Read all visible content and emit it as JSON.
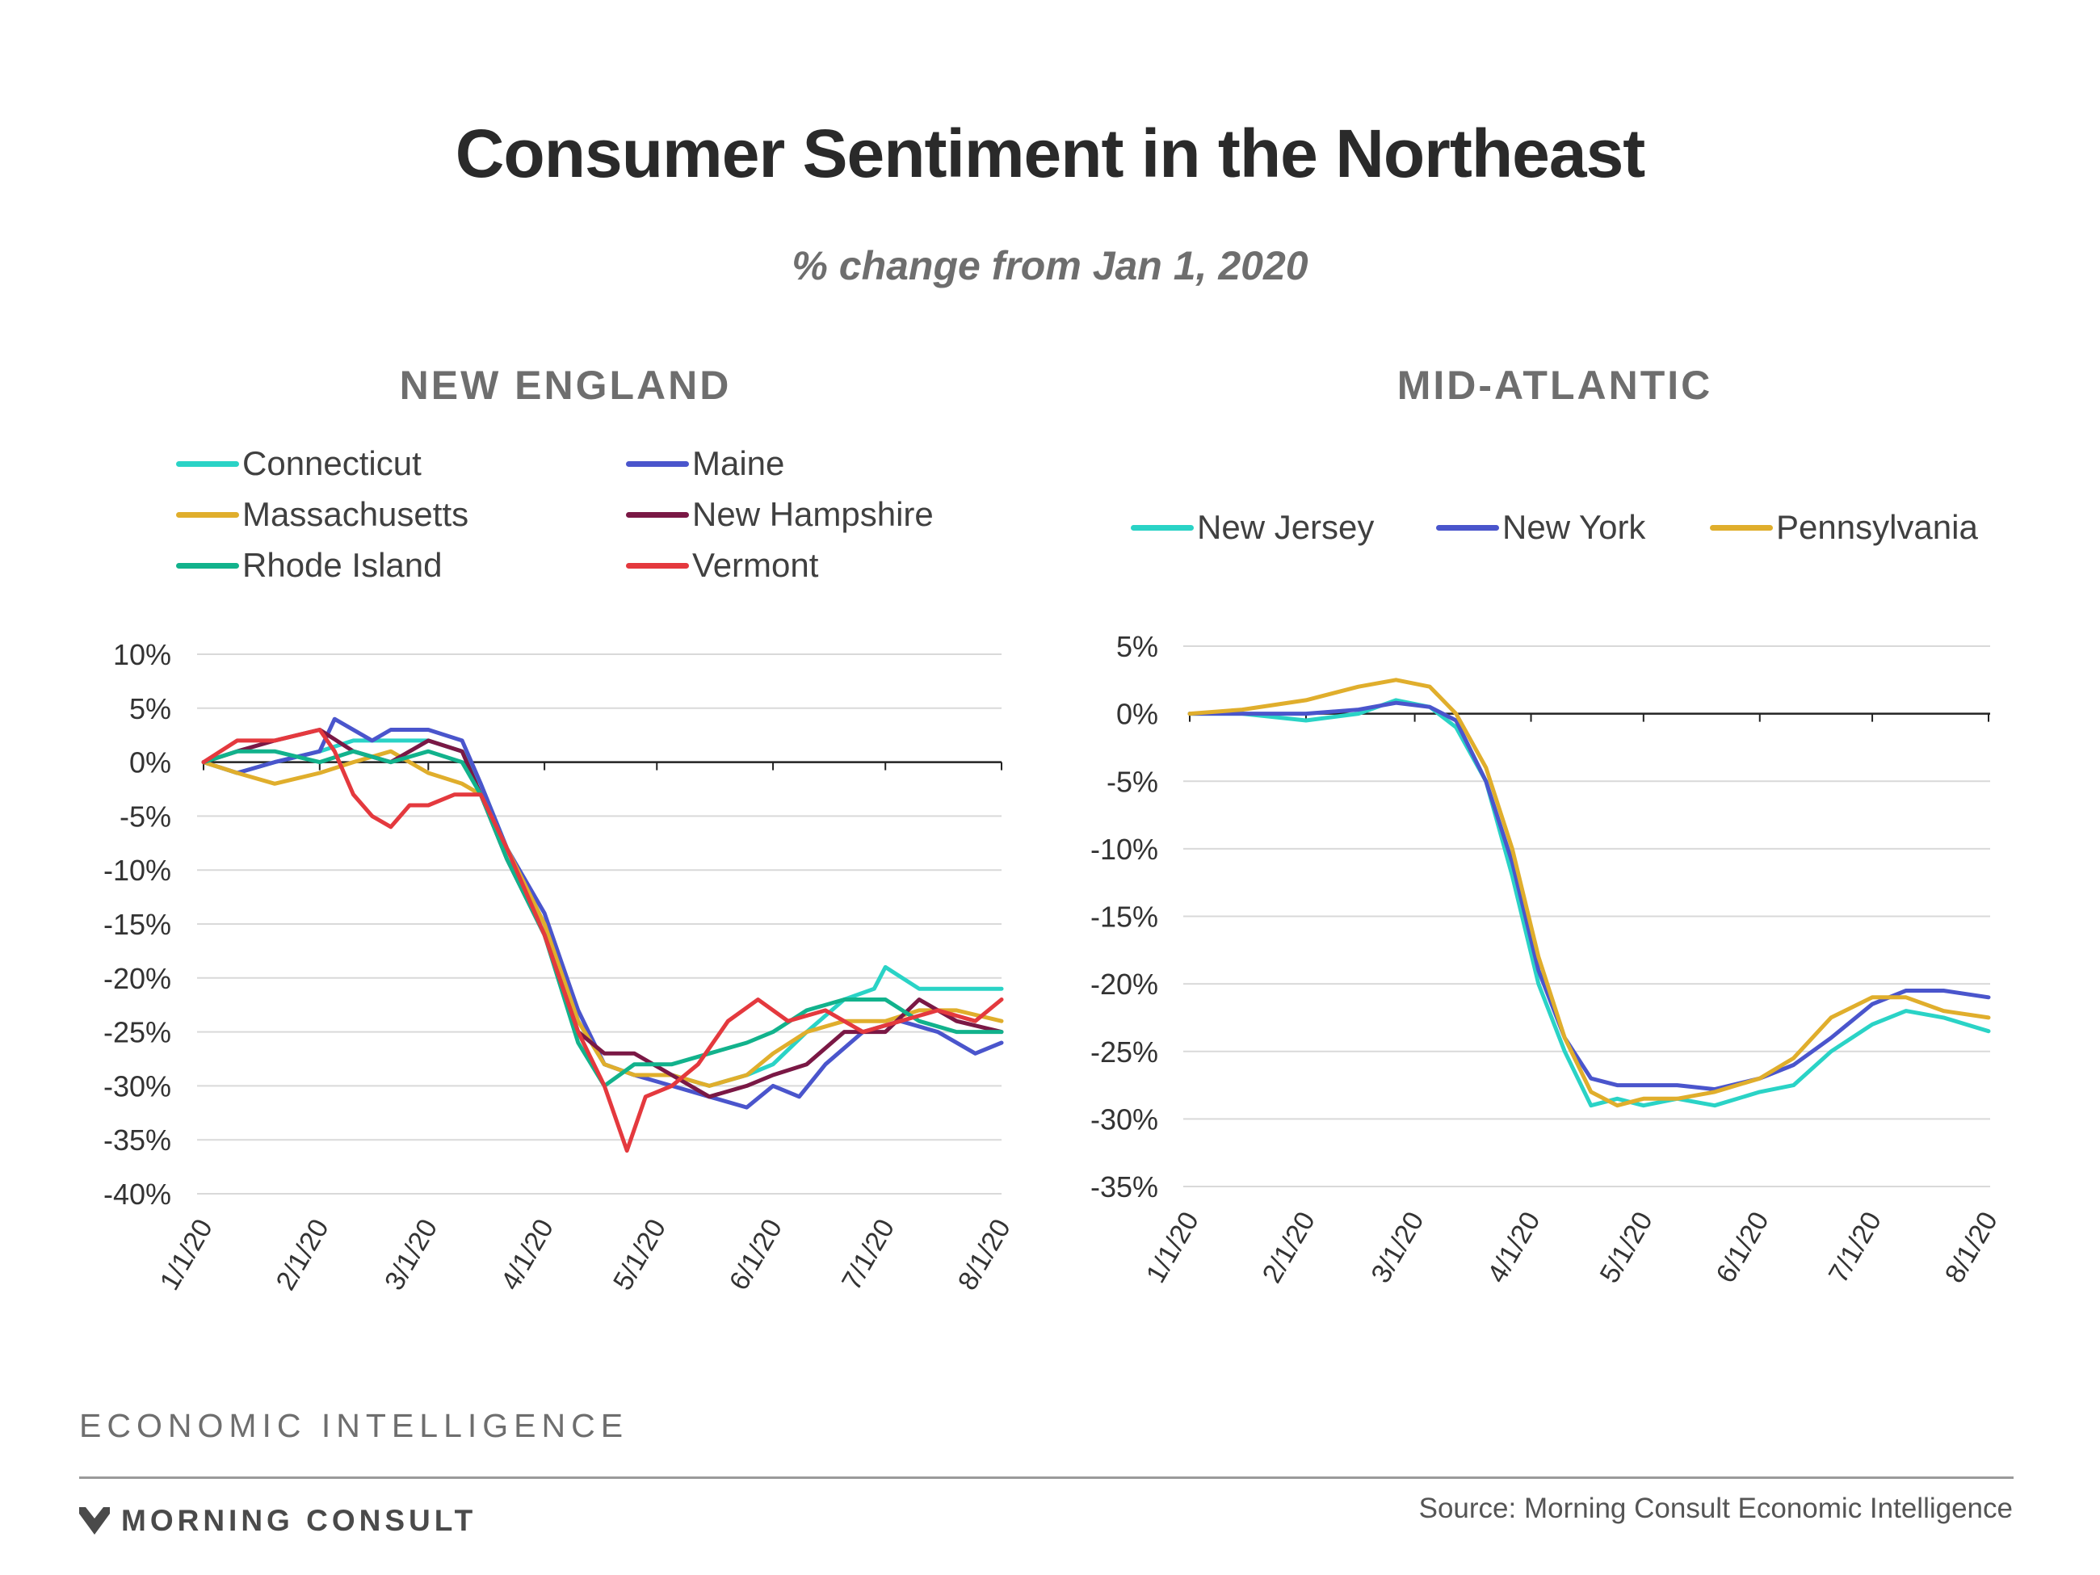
{
  "header": {
    "title": "Consumer Sentiment in the Northeast",
    "subtitle": "% change from Jan 1, 2020"
  },
  "chart_data": [
    {
      "type": "line",
      "title": "NEW ENGLAND",
      "xlabel": "",
      "ylabel": "",
      "x_ticks": [
        "1/1/20",
        "2/1/20",
        "3/1/20",
        "4/1/20",
        "5/1/20",
        "6/1/20",
        "7/1/20",
        "8/1/20"
      ],
      "xlim": [
        "2020-01-01",
        "2020-08-01"
      ],
      "y_ticks": [
        "10%",
        "5%",
        "0%",
        "-5%",
        "-10%",
        "-15%",
        "-20%",
        "-25%",
        "-30%",
        "-35%",
        "-40%"
      ],
      "ylim": [
        -40,
        10
      ],
      "grid": true,
      "legend": "top",
      "series": [
        {
          "name": "Connecticut",
          "color": "#2ad3c6",
          "points": [
            [
              "2020-01-01",
              0
            ],
            [
              "2020-01-10",
              -1
            ],
            [
              "2020-01-20",
              0
            ],
            [
              "2020-02-01",
              1
            ],
            [
              "2020-02-10",
              2
            ],
            [
              "2020-02-20",
              2
            ],
            [
              "2020-03-01",
              2
            ],
            [
              "2020-03-10",
              1
            ],
            [
              "2020-03-15",
              -2
            ],
            [
              "2020-03-22",
              -8
            ],
            [
              "2020-04-01",
              -15
            ],
            [
              "2020-04-10",
              -24
            ],
            [
              "2020-04-17",
              -28
            ],
            [
              "2020-04-25",
              -29
            ],
            [
              "2020-05-05",
              -29
            ],
            [
              "2020-05-15",
              -30
            ],
            [
              "2020-05-25",
              -29
            ],
            [
              "2020-06-01",
              -28
            ],
            [
              "2020-06-10",
              -25
            ],
            [
              "2020-06-20",
              -22
            ],
            [
              "2020-06-28",
              -21
            ],
            [
              "2020-07-01",
              -19
            ],
            [
              "2020-07-10",
              -21
            ],
            [
              "2020-07-20",
              -21
            ],
            [
              "2020-08-01",
              -21
            ]
          ]
        },
        {
          "name": "Maine",
          "color": "#4a55cc",
          "points": [
            [
              "2020-01-01",
              0
            ],
            [
              "2020-01-10",
              -1
            ],
            [
              "2020-01-20",
              0
            ],
            [
              "2020-02-01",
              1
            ],
            [
              "2020-02-05",
              4
            ],
            [
              "2020-02-15",
              2
            ],
            [
              "2020-02-20",
              3
            ],
            [
              "2020-03-01",
              3
            ],
            [
              "2020-03-10",
              2
            ],
            [
              "2020-03-15",
              -2
            ],
            [
              "2020-03-22",
              -8
            ],
            [
              "2020-04-01",
              -14
            ],
            [
              "2020-04-10",
              -23
            ],
            [
              "2020-04-17",
              -28
            ],
            [
              "2020-04-25",
              -29
            ],
            [
              "2020-05-05",
              -30
            ],
            [
              "2020-05-15",
              -31
            ],
            [
              "2020-05-25",
              -32
            ],
            [
              "2020-06-01",
              -30
            ],
            [
              "2020-06-08",
              -31
            ],
            [
              "2020-06-15",
              -28
            ],
            [
              "2020-06-25",
              -25
            ],
            [
              "2020-07-05",
              -24
            ],
            [
              "2020-07-15",
              -25
            ],
            [
              "2020-07-25",
              -27
            ],
            [
              "2020-08-01",
              -26
            ]
          ]
        },
        {
          "name": "Massachusetts",
          "color": "#e0ae2c",
          "points": [
            [
              "2020-01-01",
              0
            ],
            [
              "2020-01-10",
              -1
            ],
            [
              "2020-01-20",
              -2
            ],
            [
              "2020-02-01",
              -1
            ],
            [
              "2020-02-10",
              0
            ],
            [
              "2020-02-20",
              1
            ],
            [
              "2020-03-01",
              -1
            ],
            [
              "2020-03-10",
              -2
            ],
            [
              "2020-03-15",
              -3
            ],
            [
              "2020-03-22",
              -8
            ],
            [
              "2020-04-01",
              -15
            ],
            [
              "2020-04-10",
              -24
            ],
            [
              "2020-04-17",
              -28
            ],
            [
              "2020-04-25",
              -29
            ],
            [
              "2020-05-05",
              -29
            ],
            [
              "2020-05-15",
              -30
            ],
            [
              "2020-05-25",
              -29
            ],
            [
              "2020-06-01",
              -27
            ],
            [
              "2020-06-10",
              -25
            ],
            [
              "2020-06-20",
              -24
            ],
            [
              "2020-07-01",
              -24
            ],
            [
              "2020-07-10",
              -23
            ],
            [
              "2020-07-20",
              -23
            ],
            [
              "2020-08-01",
              -24
            ]
          ]
        },
        {
          "name": "New Hampshire",
          "color": "#7a1845",
          "points": [
            [
              "2020-01-01",
              0
            ],
            [
              "2020-01-10",
              1
            ],
            [
              "2020-01-20",
              2
            ],
            [
              "2020-02-01",
              3
            ],
            [
              "2020-02-10",
              1
            ],
            [
              "2020-02-20",
              0
            ],
            [
              "2020-03-01",
              2
            ],
            [
              "2020-03-10",
              1
            ],
            [
              "2020-03-15",
              -3
            ],
            [
              "2020-03-22",
              -9
            ],
            [
              "2020-04-01",
              -16
            ],
            [
              "2020-04-10",
              -25
            ],
            [
              "2020-04-17",
              -27
            ],
            [
              "2020-04-25",
              -27
            ],
            [
              "2020-05-05",
              -29
            ],
            [
              "2020-05-15",
              -31
            ],
            [
              "2020-05-25",
              -30
            ],
            [
              "2020-06-01",
              -29
            ],
            [
              "2020-06-10",
              -28
            ],
            [
              "2020-06-20",
              -25
            ],
            [
              "2020-07-01",
              -25
            ],
            [
              "2020-07-10",
              -22
            ],
            [
              "2020-07-20",
              -24
            ],
            [
              "2020-08-01",
              -25
            ]
          ]
        },
        {
          "name": "Rhode Island",
          "color": "#12b28c",
          "points": [
            [
              "2020-01-01",
              0
            ],
            [
              "2020-01-10",
              1
            ],
            [
              "2020-01-20",
              1
            ],
            [
              "2020-02-01",
              0
            ],
            [
              "2020-02-10",
              1
            ],
            [
              "2020-02-20",
              0
            ],
            [
              "2020-03-01",
              1
            ],
            [
              "2020-03-10",
              0
            ],
            [
              "2020-03-15",
              -3
            ],
            [
              "2020-03-22",
              -9
            ],
            [
              "2020-04-01",
              -16
            ],
            [
              "2020-04-10",
              -26
            ],
            [
              "2020-04-17",
              -30
            ],
            [
              "2020-04-25",
              -28
            ],
            [
              "2020-05-05",
              -28
            ],
            [
              "2020-05-15",
              -27
            ],
            [
              "2020-05-25",
              -26
            ],
            [
              "2020-06-01",
              -25
            ],
            [
              "2020-06-10",
              -23
            ],
            [
              "2020-06-20",
              -22
            ],
            [
              "2020-07-01",
              -22
            ],
            [
              "2020-07-10",
              -24
            ],
            [
              "2020-07-20",
              -25
            ],
            [
              "2020-08-01",
              -25
            ]
          ]
        },
        {
          "name": "Vermont",
          "color": "#e4393e",
          "points": [
            [
              "2020-01-01",
              0
            ],
            [
              "2020-01-10",
              2
            ],
            [
              "2020-01-20",
              2
            ],
            [
              "2020-02-01",
              3
            ],
            [
              "2020-02-05",
              1
            ],
            [
              "2020-02-10",
              -3
            ],
            [
              "2020-02-15",
              -5
            ],
            [
              "2020-02-20",
              -6
            ],
            [
              "2020-02-25",
              -4
            ],
            [
              "2020-03-01",
              -4
            ],
            [
              "2020-03-08",
              -3
            ],
            [
              "2020-03-15",
              -3
            ],
            [
              "2020-03-22",
              -8
            ],
            [
              "2020-04-01",
              -16
            ],
            [
              "2020-04-10",
              -25
            ],
            [
              "2020-04-17",
              -30
            ],
            [
              "2020-04-23",
              -36
            ],
            [
              "2020-04-28",
              -31
            ],
            [
              "2020-05-05",
              -30
            ],
            [
              "2020-05-12",
              -28
            ],
            [
              "2020-05-20",
              -24
            ],
            [
              "2020-05-28",
              -22
            ],
            [
              "2020-06-05",
              -24
            ],
            [
              "2020-06-15",
              -23
            ],
            [
              "2020-06-25",
              -25
            ],
            [
              "2020-07-05",
              -24
            ],
            [
              "2020-07-15",
              -23
            ],
            [
              "2020-07-25",
              -24
            ],
            [
              "2020-08-01",
              -22
            ]
          ]
        }
      ]
    },
    {
      "type": "line",
      "title": "MID-ATLANTIC",
      "xlabel": "",
      "ylabel": "",
      "x_ticks": [
        "1/1/20",
        "2/1/20",
        "3/1/20",
        "4/1/20",
        "5/1/20",
        "6/1/20",
        "7/1/20",
        "8/1/20"
      ],
      "xlim": [
        "2020-01-01",
        "2020-08-01"
      ],
      "y_ticks": [
        "5%",
        "0%",
        "-5%",
        "-10%",
        "-15%",
        "-20%",
        "-25%",
        "-30%",
        "-35%"
      ],
      "ylim": [
        -35,
        5
      ],
      "grid": true,
      "legend": "top",
      "series": [
        {
          "name": "New Jersey",
          "color": "#2ad3c6",
          "points": [
            [
              "2020-01-01",
              0
            ],
            [
              "2020-01-15",
              0
            ],
            [
              "2020-02-01",
              -0.5
            ],
            [
              "2020-02-15",
              0
            ],
            [
              "2020-02-25",
              1
            ],
            [
              "2020-03-05",
              0.5
            ],
            [
              "2020-03-12",
              -1
            ],
            [
              "2020-03-20",
              -5
            ],
            [
              "2020-03-27",
              -12
            ],
            [
              "2020-04-03",
              -20
            ],
            [
              "2020-04-10",
              -25
            ],
            [
              "2020-04-17",
              -29
            ],
            [
              "2020-04-24",
              -28.5
            ],
            [
              "2020-05-01",
              -29
            ],
            [
              "2020-05-10",
              -28.5
            ],
            [
              "2020-05-20",
              -29
            ],
            [
              "2020-06-01",
              -28
            ],
            [
              "2020-06-10",
              -27.5
            ],
            [
              "2020-06-20",
              -25
            ],
            [
              "2020-07-01",
              -23
            ],
            [
              "2020-07-10",
              -22
            ],
            [
              "2020-07-20",
              -22.5
            ],
            [
              "2020-08-01",
              -23.5
            ]
          ]
        },
        {
          "name": "New York",
          "color": "#4a55cc",
          "points": [
            [
              "2020-01-01",
              0
            ],
            [
              "2020-01-15",
              0
            ],
            [
              "2020-02-01",
              0
            ],
            [
              "2020-02-15",
              0.3
            ],
            [
              "2020-02-25",
              0.8
            ],
            [
              "2020-03-05",
              0.5
            ],
            [
              "2020-03-12",
              -0.5
            ],
            [
              "2020-03-20",
              -5
            ],
            [
              "2020-03-27",
              -11
            ],
            [
              "2020-04-03",
              -19
            ],
            [
              "2020-04-10",
              -24
            ],
            [
              "2020-04-17",
              -27
            ],
            [
              "2020-04-24",
              -27.5
            ],
            [
              "2020-05-01",
              -27.5
            ],
            [
              "2020-05-10",
              -27.5
            ],
            [
              "2020-05-20",
              -27.8
            ],
            [
              "2020-06-01",
              -27
            ],
            [
              "2020-06-10",
              -26
            ],
            [
              "2020-06-20",
              -24
            ],
            [
              "2020-07-01",
              -21.5
            ],
            [
              "2020-07-10",
              -20.5
            ],
            [
              "2020-07-20",
              -20.5
            ],
            [
              "2020-08-01",
              -21
            ]
          ]
        },
        {
          "name": "Pennsylvania",
          "color": "#e0ae2c",
          "points": [
            [
              "2020-01-01",
              0
            ],
            [
              "2020-01-15",
              0.3
            ],
            [
              "2020-02-01",
              1
            ],
            [
              "2020-02-15",
              2
            ],
            [
              "2020-02-25",
              2.5
            ],
            [
              "2020-03-05",
              2
            ],
            [
              "2020-03-12",
              0
            ],
            [
              "2020-03-20",
              -4
            ],
            [
              "2020-03-27",
              -10
            ],
            [
              "2020-04-03",
              -18
            ],
            [
              "2020-04-10",
              -24
            ],
            [
              "2020-04-17",
              -28
            ],
            [
              "2020-04-24",
              -29
            ],
            [
              "2020-05-01",
              -28.5
            ],
            [
              "2020-05-10",
              -28.5
            ],
            [
              "2020-05-20",
              -28
            ],
            [
              "2020-06-01",
              -27
            ],
            [
              "2020-06-10",
              -25.5
            ],
            [
              "2020-06-20",
              -22.5
            ],
            [
              "2020-07-01",
              -21
            ],
            [
              "2020-07-10",
              -21
            ],
            [
              "2020-07-20",
              -22
            ],
            [
              "2020-08-01",
              -22.5
            ]
          ]
        }
      ]
    }
  ],
  "footer": {
    "tag": "ECONOMIC INTELLIGENCE",
    "brand": "MORNING CONSULT",
    "source": "Source: Morning Consult Economic Intelligence"
  }
}
